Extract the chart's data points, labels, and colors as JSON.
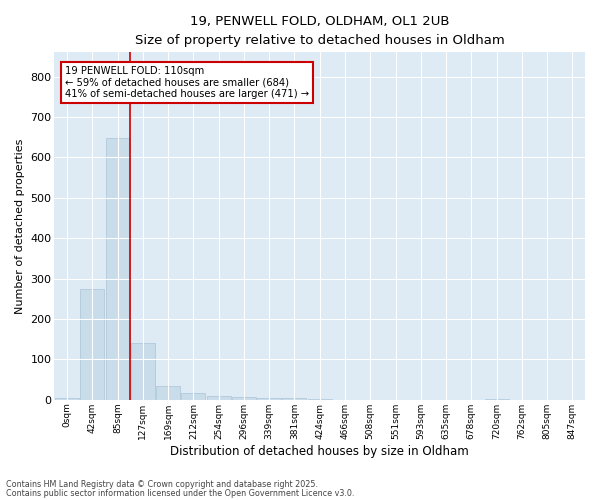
{
  "title_line1": "19, PENWELL FOLD, OLDHAM, OL1 2UB",
  "title_line2": "Size of property relative to detached houses in Oldham",
  "xlabel": "Distribution of detached houses by size in Oldham",
  "ylabel": "Number of detached properties",
  "bar_color": "#c8dcea",
  "bar_edge_color": "#aac4d8",
  "background_color": "#deeaf4",
  "grid_color": "#ffffff",
  "vline_color": "#cc0000",
  "vline_x": 2.5,
  "annotation_text": "19 PENWELL FOLD: 110sqm\n← 59% of detached houses are smaller (684)\n41% of semi-detached houses are larger (471) →",
  "annotation_box_color": "#ffffff",
  "annotation_box_edge": "#cc0000",
  "bins": [
    "0sqm",
    "42sqm",
    "85sqm",
    "127sqm",
    "169sqm",
    "212sqm",
    "254sqm",
    "296sqm",
    "339sqm",
    "381sqm",
    "424sqm",
    "466sqm",
    "508sqm",
    "551sqm",
    "593sqm",
    "635sqm",
    "678sqm",
    "720sqm",
    "762sqm",
    "805sqm",
    "847sqm"
  ],
  "values": [
    5,
    275,
    648,
    140,
    35,
    18,
    10,
    8,
    5,
    4,
    1,
    0,
    0,
    0,
    0,
    0,
    0,
    3,
    0,
    0,
    0
  ],
  "ylim": [
    0,
    860
  ],
  "yticks": [
    0,
    100,
    200,
    300,
    400,
    500,
    600,
    700,
    800
  ],
  "footer_line1": "Contains HM Land Registry data © Crown copyright and database right 2025.",
  "footer_line2": "Contains public sector information licensed under the Open Government Licence v3.0.",
  "fig_width": 6.0,
  "fig_height": 5.0,
  "fig_dpi": 100
}
